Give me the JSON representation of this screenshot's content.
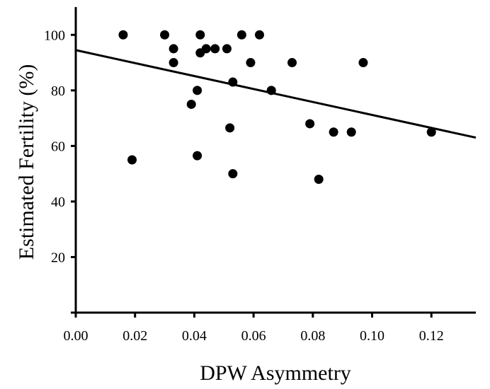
{
  "chart_data": {
    "type": "scatter",
    "title": "",
    "xlabel": "DPW Asymmetry",
    "ylabel": "Estimated Fertility (%)",
    "xlim": [
      0.0,
      0.135
    ],
    "ylim": [
      0,
      110
    ],
    "x_ticks": [
      0.0,
      0.02,
      0.04,
      0.06,
      0.08,
      0.1,
      0.12
    ],
    "x_tick_labels": [
      "0.00",
      "0.02",
      "0.04",
      "0.06",
      "0.08",
      "0.10",
      "0.12"
    ],
    "y_ticks": [
      0,
      20,
      40,
      60,
      80,
      100
    ],
    "y_tick_labels": [
      "",
      "20",
      "40",
      "60",
      "80",
      "100"
    ],
    "grid": false,
    "legend": "none",
    "series": [
      {
        "points": [
          {
            "x": 0.016,
            "y": 100
          },
          {
            "x": 0.019,
            "y": 55
          },
          {
            "x": 0.03,
            "y": 100
          },
          {
            "x": 0.033,
            "y": 95
          },
          {
            "x": 0.033,
            "y": 90
          },
          {
            "x": 0.039,
            "y": 75
          },
          {
            "x": 0.041,
            "y": 80
          },
          {
            "x": 0.041,
            "y": 56.5
          },
          {
            "x": 0.042,
            "y": 100
          },
          {
            "x": 0.042,
            "y": 93.5
          },
          {
            "x": 0.044,
            "y": 95
          },
          {
            "x": 0.047,
            "y": 95
          },
          {
            "x": 0.051,
            "y": 95
          },
          {
            "x": 0.052,
            "y": 66.5
          },
          {
            "x": 0.053,
            "y": 83
          },
          {
            "x": 0.053,
            "y": 50
          },
          {
            "x": 0.056,
            "y": 100
          },
          {
            "x": 0.059,
            "y": 90
          },
          {
            "x": 0.062,
            "y": 100
          },
          {
            "x": 0.066,
            "y": 80
          },
          {
            "x": 0.073,
            "y": 90
          },
          {
            "x": 0.079,
            "y": 68
          },
          {
            "x": 0.082,
            "y": 48
          },
          {
            "x": 0.087,
            "y": 65
          },
          {
            "x": 0.093,
            "y": 65
          },
          {
            "x": 0.097,
            "y": 90
          },
          {
            "x": 0.12,
            "y": 65
          }
        ]
      }
    ],
    "trendline": {
      "x": [
        0.0,
        0.135
      ],
      "y": [
        94.5,
        63
      ]
    },
    "colors": {
      "points": "#000000",
      "line": "#000000",
      "axes": "#000000"
    }
  }
}
